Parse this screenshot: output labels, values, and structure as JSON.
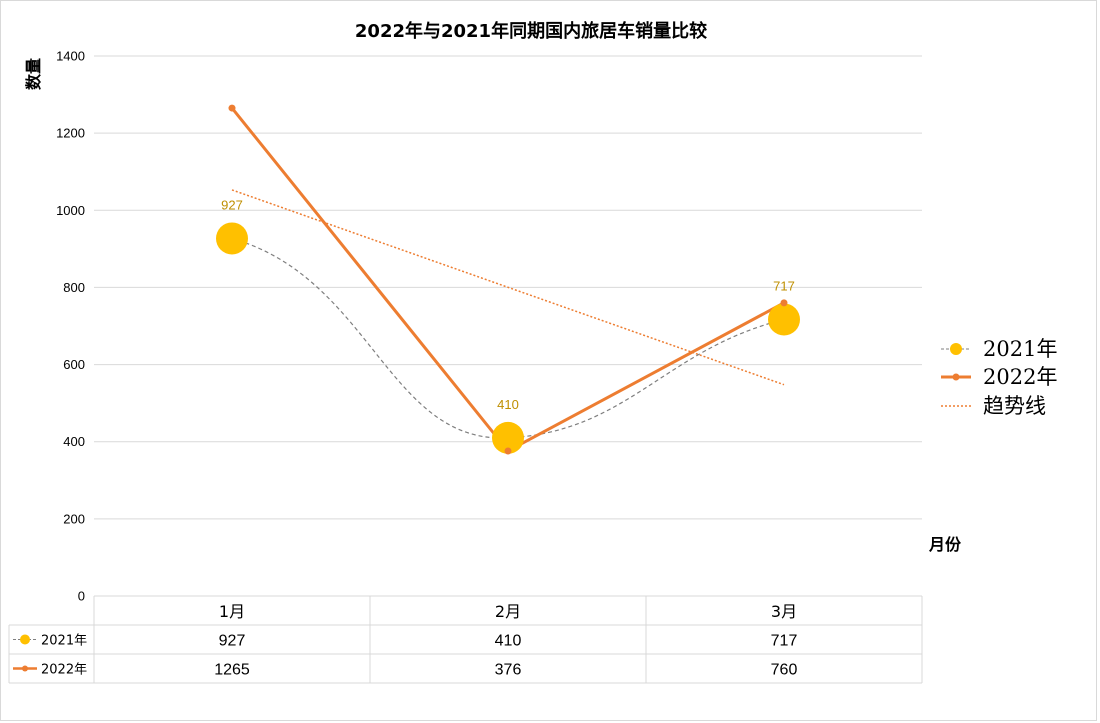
{
  "chart_data": {
    "type": "line",
    "title": "2022年与2021年同期国内旅居车销量比较",
    "xlabel": "月份",
    "ylabel": "数量",
    "categories": [
      "1月",
      "2月",
      "3月"
    ],
    "ylim": [
      0,
      1400
    ],
    "yticks": [
      0,
      200,
      400,
      600,
      800,
      1000,
      1200,
      1400
    ],
    "grid": true,
    "legend_position": "right",
    "series": [
      {
        "name": "2021年",
        "values": [
          927,
          410,
          717
        ],
        "color": "#FFC000",
        "line_color": "#7F7F7F",
        "line_style": "dashed-smooth",
        "marker": "large-circle",
        "data_labels": [
          "927",
          "410",
          "717"
        ],
        "data_label_color": "#BF8F00"
      },
      {
        "name": "2022年",
        "values": [
          1265,
          376,
          760
        ],
        "color": "#ED7D31",
        "line_style": "solid",
        "marker": "small-circle"
      }
    ],
    "trendline": {
      "name": "趋势线",
      "series": "2022年",
      "type": "linear",
      "color": "#ED7D31",
      "line_style": "dotted"
    },
    "data_table": {
      "rows": [
        {
          "series": "2021年",
          "values": [
            "927",
            "410",
            "717"
          ]
        },
        {
          "series": "2022年",
          "values": [
            "1265",
            "376",
            "760"
          ]
        }
      ]
    }
  }
}
